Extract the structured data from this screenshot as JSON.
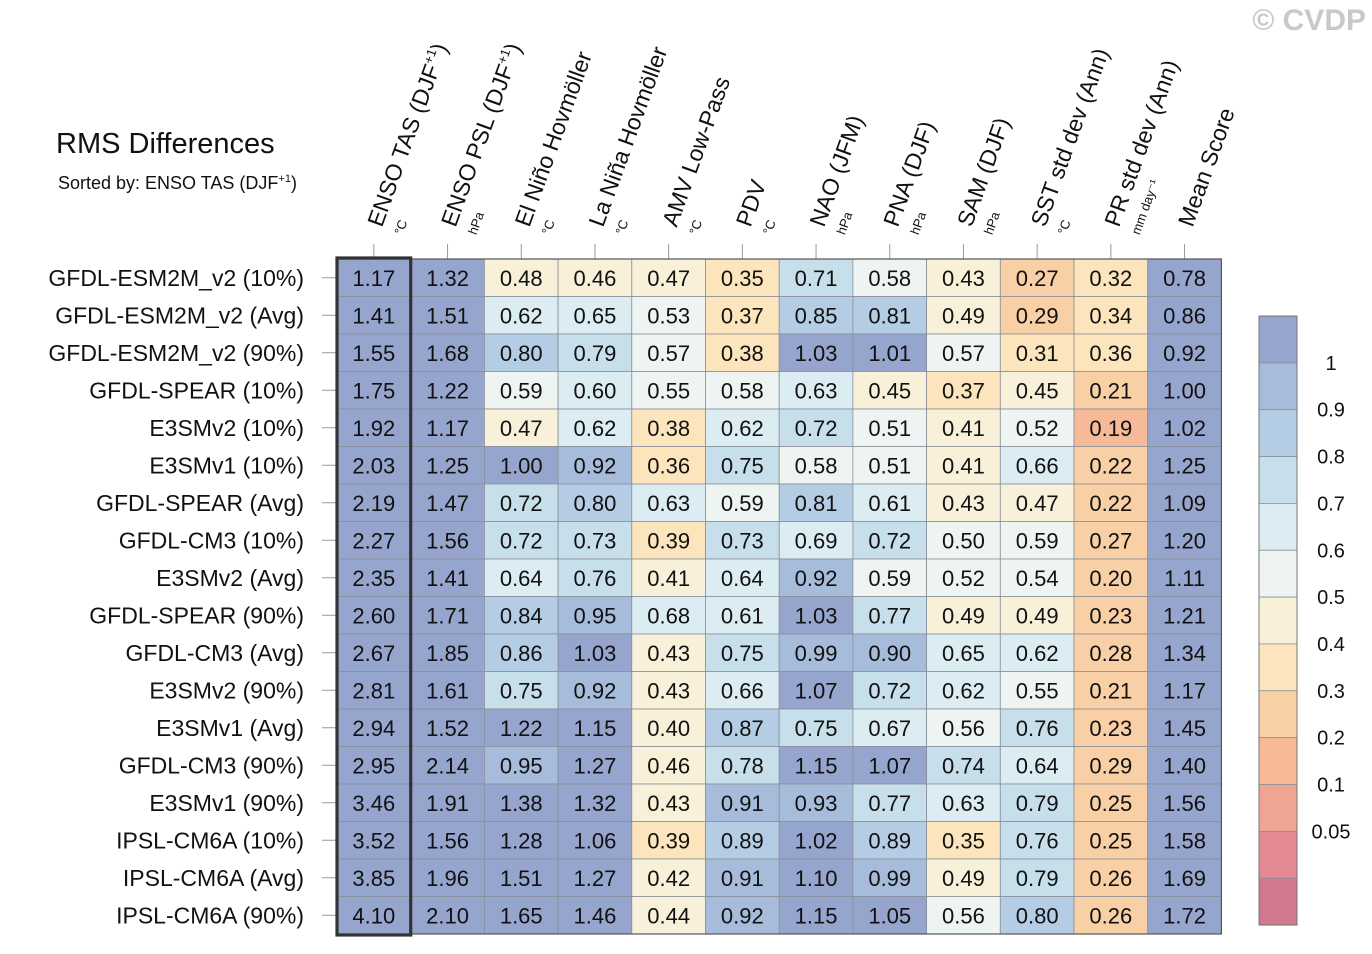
{
  "watermark": "© CVDP",
  "chart_data": {
    "type": "heatmap",
    "title": "RMS Differences",
    "subtitle_prefix": "Sorted by: ENSO TAS (DJF",
    "subtitle_sup": "+1",
    "subtitle_suffix": ")",
    "columns": [
      {
        "name": "ENSO TAS (DJF",
        "sup": "+1",
        "tail": ")",
        "unit": "°C"
      },
      {
        "name": "ENSO PSL (DJF",
        "sup": "+1",
        "tail": ")",
        "unit": "hPa"
      },
      {
        "name": "El Niño Hovmöller",
        "sup": "",
        "tail": "",
        "unit": "°C"
      },
      {
        "name": "La Niña Hovmöller",
        "sup": "",
        "tail": "",
        "unit": "°C"
      },
      {
        "name": "AMV Low-Pass",
        "sup": "",
        "tail": "",
        "unit": "°C"
      },
      {
        "name": "PDV",
        "sup": "",
        "tail": "",
        "unit": "°C"
      },
      {
        "name": "NAO (JFM)",
        "sup": "",
        "tail": "",
        "unit": "hPa"
      },
      {
        "name": "PNA (DJF)",
        "sup": "",
        "tail": "",
        "unit": "hPa"
      },
      {
        "name": "SAM (DJF)",
        "sup": "",
        "tail": "",
        "unit": "hPa"
      },
      {
        "name": "SST std dev (Ann)",
        "sup": "",
        "tail": "",
        "unit": "°C"
      },
      {
        "name": "PR std dev (Ann)",
        "sup": "",
        "tail": "",
        "unit": "mm day⁻¹"
      },
      {
        "name": "Mean Score",
        "sup": "",
        "tail": "",
        "unit": ""
      }
    ],
    "rows": [
      "GFDL-ESM2M_v2 (10%)",
      "GFDL-ESM2M_v2 (Avg)",
      "GFDL-ESM2M_v2 (90%)",
      "GFDL-SPEAR (10%)",
      "E3SMv2 (10%)",
      "E3SMv1 (10%)",
      "GFDL-SPEAR (Avg)",
      "GFDL-CM3 (10%)",
      "E3SMv2 (Avg)",
      "GFDL-SPEAR (90%)",
      "GFDL-CM3 (Avg)",
      "E3SMv2 (90%)",
      "E3SMv1 (Avg)",
      "GFDL-CM3 (90%)",
      "E3SMv1 (90%)",
      "IPSL-CM6A (10%)",
      "IPSL-CM6A (Avg)",
      "IPSL-CM6A (90%)"
    ],
    "values": [
      [
        "1.17",
        "1.32",
        "0.48",
        "0.46",
        "0.47",
        "0.35",
        "0.71",
        "0.58",
        "0.43",
        "0.27",
        "0.32",
        "0.78"
      ],
      [
        "1.41",
        "1.51",
        "0.62",
        "0.65",
        "0.53",
        "0.37",
        "0.85",
        "0.81",
        "0.49",
        "0.29",
        "0.34",
        "0.86"
      ],
      [
        "1.55",
        "1.68",
        "0.80",
        "0.79",
        "0.57",
        "0.38",
        "1.03",
        "1.01",
        "0.57",
        "0.31",
        "0.36",
        "0.92"
      ],
      [
        "1.75",
        "1.22",
        "0.59",
        "0.60",
        "0.55",
        "0.58",
        "0.63",
        "0.45",
        "0.37",
        "0.45",
        "0.21",
        "1.00"
      ],
      [
        "1.92",
        "1.17",
        "0.47",
        "0.62",
        "0.38",
        "0.62",
        "0.72",
        "0.51",
        "0.41",
        "0.52",
        "0.19",
        "1.02"
      ],
      [
        "2.03",
        "1.25",
        "1.00",
        "0.92",
        "0.36",
        "0.75",
        "0.58",
        "0.51",
        "0.41",
        "0.66",
        "0.22",
        "1.25"
      ],
      [
        "2.19",
        "1.47",
        "0.72",
        "0.80",
        "0.63",
        "0.59",
        "0.81",
        "0.61",
        "0.43",
        "0.47",
        "0.22",
        "1.09"
      ],
      [
        "2.27",
        "1.56",
        "0.72",
        "0.73",
        "0.39",
        "0.73",
        "0.69",
        "0.72",
        "0.50",
        "0.59",
        "0.27",
        "1.20"
      ],
      [
        "2.35",
        "1.41",
        "0.64",
        "0.76",
        "0.41",
        "0.64",
        "0.92",
        "0.59",
        "0.52",
        "0.54",
        "0.20",
        "1.11"
      ],
      [
        "2.60",
        "1.71",
        "0.84",
        "0.95",
        "0.68",
        "0.61",
        "1.03",
        "0.77",
        "0.49",
        "0.49",
        "0.23",
        "1.21"
      ],
      [
        "2.67",
        "1.85",
        "0.86",
        "1.03",
        "0.43",
        "0.75",
        "0.99",
        "0.90",
        "0.65",
        "0.62",
        "0.28",
        "1.34"
      ],
      [
        "2.81",
        "1.61",
        "0.75",
        "0.92",
        "0.43",
        "0.66",
        "1.07",
        "0.72",
        "0.62",
        "0.55",
        "0.21",
        "1.17"
      ],
      [
        "2.94",
        "1.52",
        "1.22",
        "1.15",
        "0.40",
        "0.87",
        "0.75",
        "0.67",
        "0.56",
        "0.76",
        "0.23",
        "1.45"
      ],
      [
        "2.95",
        "2.14",
        "0.95",
        "1.27",
        "0.46",
        "0.78",
        "1.15",
        "1.07",
        "0.74",
        "0.64",
        "0.29",
        "1.40"
      ],
      [
        "3.46",
        "1.91",
        "1.38",
        "1.32",
        "0.43",
        "0.91",
        "0.93",
        "0.77",
        "0.63",
        "0.79",
        "0.25",
        "1.56"
      ],
      [
        "3.52",
        "1.56",
        "1.28",
        "1.06",
        "0.39",
        "0.89",
        "1.02",
        "0.89",
        "0.35",
        "0.76",
        "0.25",
        "1.58"
      ],
      [
        "3.85",
        "1.96",
        "1.51",
        "1.27",
        "0.42",
        "0.91",
        "1.10",
        "0.99",
        "0.49",
        "0.79",
        "0.26",
        "1.69"
      ],
      [
        "4.10",
        "2.10",
        "1.65",
        "1.46",
        "0.44",
        "0.92",
        "1.15",
        "1.05",
        "0.56",
        "0.80",
        "0.26",
        "1.72"
      ]
    ],
    "highlighted_column": 0,
    "colorbar": {
      "labels": [
        "1",
        "0.9",
        "0.8",
        "0.7",
        "0.6",
        "0.5",
        "0.4",
        "0.3",
        "0.2",
        "0.1",
        "0.05"
      ],
      "colors": [
        "#96a5cd",
        "#a6bcda",
        "#b4cde4",
        "#c6dfea",
        "#dbecf2",
        "#eef4f2",
        "#f8f0d8",
        "#fce5bc",
        "#f9cfa5",
        "#f6ba98",
        "#f0a494",
        "#e48a92",
        "#d2788f"
      ]
    }
  }
}
